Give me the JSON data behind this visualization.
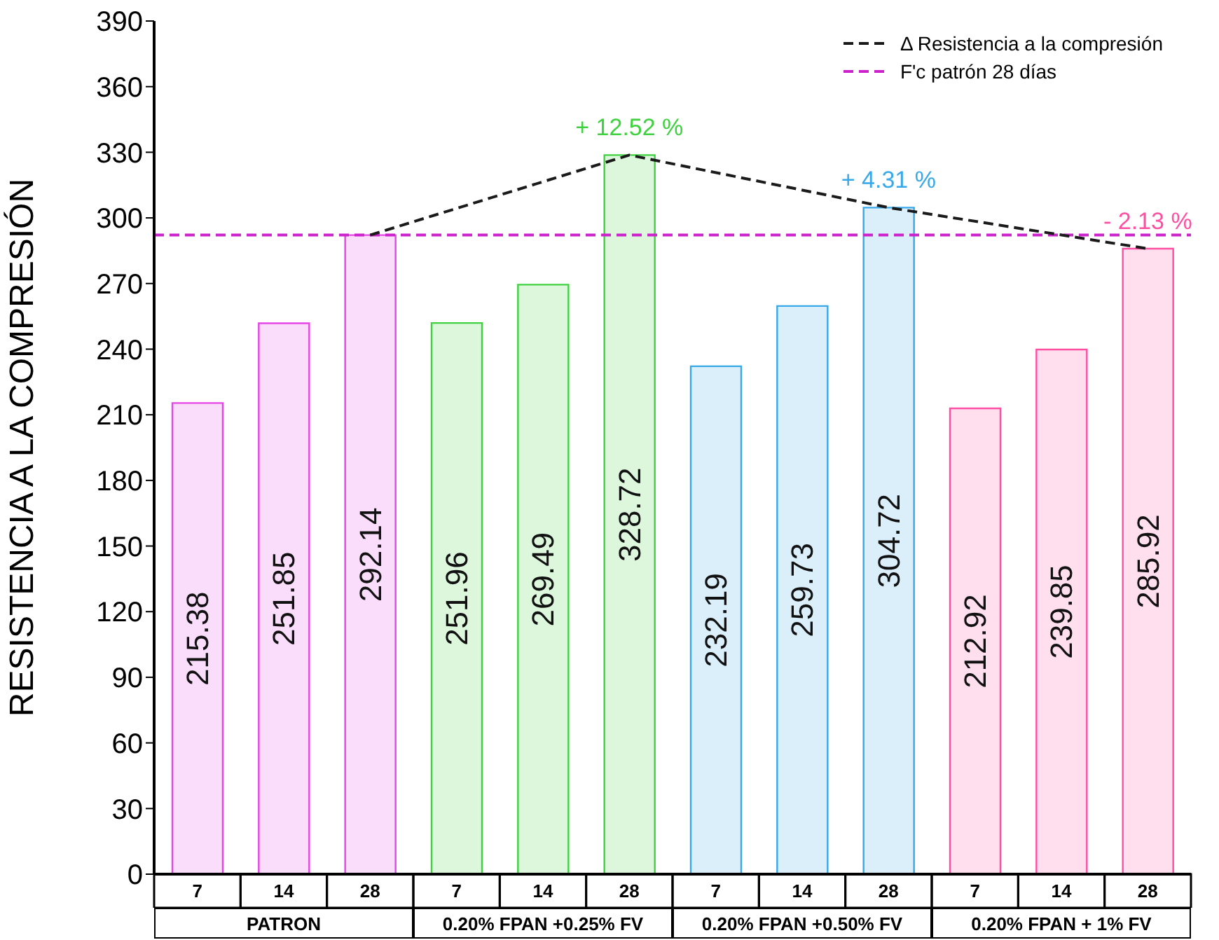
{
  "chart_data": {
    "type": "bar",
    "ylabel": "RESISTENCIA  A LA COMPRESIÓN",
    "categories": [
      "7",
      "14",
      "28",
      "7",
      "14",
      "28",
      "7",
      "14",
      "28",
      "7",
      "14",
      "28"
    ],
    "values": [
      215.38,
      251.85,
      292.14,
      251.96,
      269.49,
      328.72,
      232.19,
      259.73,
      304.72,
      212.92,
      239.85,
      285.92
    ],
    "colors": [
      "#e645e6",
      "#e645e6",
      "#e645e6",
      "#3fd13f",
      "#3fd13f",
      "#3fd13f",
      "#37a8e8",
      "#37a8e8",
      "#37a8e8",
      "#ff4fa3",
      "#ff4fa3",
      "#ff4fa3"
    ],
    "data_labels": true,
    "series": [
      {
        "type": "line",
        "name": "Δ Resistencia a la compresión",
        "color": "#1a1a1a",
        "line_style": "dashed",
        "values": [
          null,
          null,
          292.14,
          null,
          null,
          328.72,
          null,
          null,
          304.72,
          null,
          null,
          285.92
        ],
        "value_labels": [
          null,
          null,
          null,
          null,
          null,
          null,
          null,
          null,
          null,
          null,
          null,
          null
        ]
      }
    ],
    "ref_lines": [
      {
        "axis": "y",
        "value": 292.14,
        "label": "F'c patrón 28 días",
        "color": "#cc22cc",
        "line_style": "dashed"
      }
    ],
    "annotations": [
      "PATRON",
      "0.20% FPAN +0.25% FV",
      "0.20% FPAN +0.50% FV",
      "0.20% FPAN + 1% FV",
      {
        "text": "+ 12.52 %",
        "y": 328.72
      },
      {
        "text": "+ 4.31 %",
        "y": 304.72
      },
      {
        "text": "- 2.13 %",
        "y": 285.92
      }
    ],
    "ylim": [
      0,
      390
    ],
    "yticks": [
      0,
      30,
      60,
      90,
      120,
      150,
      180,
      210,
      240,
      270,
      300,
      330,
      360,
      390
    ],
    "legend": "top right"
  }
}
